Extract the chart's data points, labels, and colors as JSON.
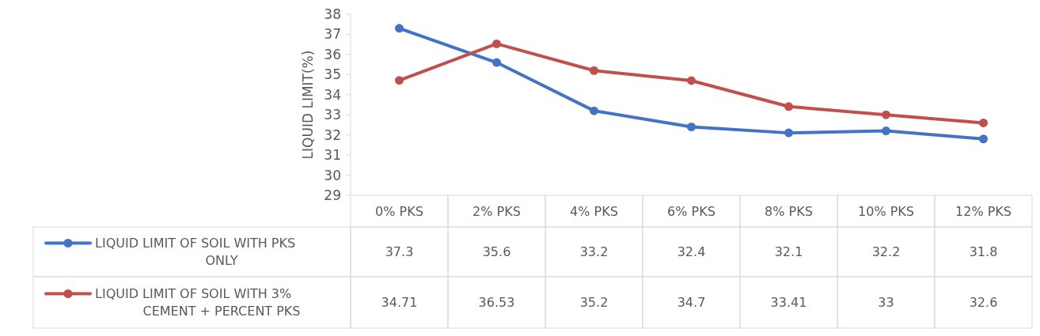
{
  "chart_data": {
    "type": "line",
    "ylabel": "LIQUID LIMIT(%)",
    "categories": [
      "0% PKS",
      "2% PKS",
      "4% PKS",
      "6% PKS",
      "8% PKS",
      "10% PKS",
      "12% PKS"
    ],
    "series": [
      {
        "name": "LIQUID LIMIT OF SOIL WITH PKS ONLY",
        "color": "#4472c4",
        "values": [
          37.3,
          35.6,
          33.2,
          32.4,
          32.1,
          32.2,
          31.8
        ]
      },
      {
        "name": "LIQUID LIMIT OF SOIL WITH 3% CEMENT + PERCENT PKS",
        "color": "#c0504d",
        "values": [
          34.71,
          36.53,
          35.2,
          34.7,
          33.41,
          33,
          32.6
        ]
      }
    ],
    "ylim": [
      29,
      38
    ],
    "yticks": [
      29,
      30,
      31,
      32,
      33,
      34,
      35,
      36,
      37,
      38
    ],
    "grid": false,
    "legend": "bottom",
    "marker": "circle",
    "line_style": "solid",
    "data_labels": true
  }
}
